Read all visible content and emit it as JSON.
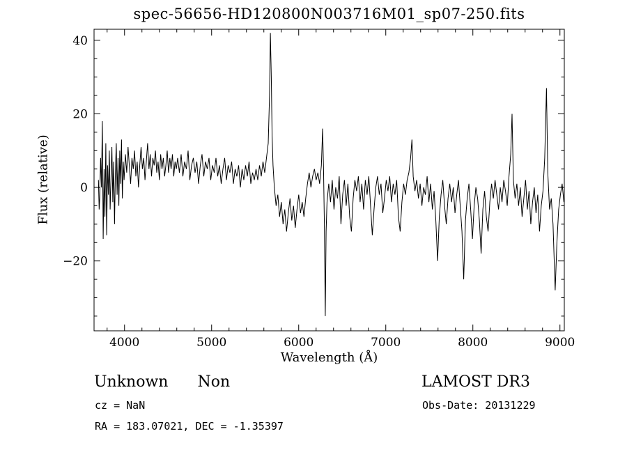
{
  "title": "spec-56656-HD120800N003716M01_sp07-250.fits",
  "axes": {
    "xlabel": "Wavelength (Å)",
    "ylabel": "Flux (relative)"
  },
  "annotations": {
    "class_name": "Unknown",
    "subclass": "Non",
    "survey": "LAMOST DR3",
    "cz": "cz = NaN",
    "obs_date": "Obs-Date: 20131229",
    "ra_dec": "RA = 183.07021, DEC =  -1.35397"
  },
  "colors": {
    "line": "#000000",
    "frame": "#000000",
    "background": "#ffffff"
  },
  "chart_data": {
    "type": "line",
    "title": "spec-56656-HD120800N003716M01_sp07-250.fits",
    "xlabel": "Wavelength (Å)",
    "ylabel": "Flux (relative)",
    "xlim": [
      3650,
      9050
    ],
    "ylim": [
      -39,
      43
    ],
    "x_ticks": [
      4000,
      5000,
      6000,
      7000,
      8000,
      9000
    ],
    "y_ticks": [
      -20,
      0,
      20,
      40
    ],
    "x_minor_step": 200,
    "y_minor_step": 5,
    "grid": false,
    "legend": "none",
    "points": [
      [
        3700,
        2
      ],
      [
        3708,
        -6
      ],
      [
        3715,
        -3
      ],
      [
        3725,
        8
      ],
      [
        3735,
        0
      ],
      [
        3745,
        18
      ],
      [
        3755,
        -14
      ],
      [
        3765,
        5
      ],
      [
        3775,
        -8
      ],
      [
        3785,
        12
      ],
      [
        3795,
        -13
      ],
      [
        3805,
        6
      ],
      [
        3815,
        -2
      ],
      [
        3825,
        10
      ],
      [
        3835,
        -6
      ],
      [
        3845,
        3
      ],
      [
        3855,
        11
      ],
      [
        3865,
        -4
      ],
      [
        3875,
        7
      ],
      [
        3885,
        -10
      ],
      [
        3895,
        4
      ],
      [
        3905,
        12
      ],
      [
        3915,
        -2
      ],
      [
        3925,
        8
      ],
      [
        3935,
        -5
      ],
      [
        3945,
        10
      ],
      [
        3955,
        1
      ],
      [
        3965,
        13
      ],
      [
        3975,
        -3
      ],
      [
        3985,
        7
      ],
      [
        3995,
        2
      ],
      [
        4010,
        9
      ],
      [
        4025,
        4
      ],
      [
        4040,
        11
      ],
      [
        4055,
        6
      ],
      [
        4070,
        1
      ],
      [
        4085,
        8
      ],
      [
        4100,
        5
      ],
      [
        4115,
        10
      ],
      [
        4130,
        3
      ],
      [
        4145,
        7
      ],
      [
        4160,
        0
      ],
      [
        4175,
        6
      ],
      [
        4190,
        11
      ],
      [
        4205,
        5
      ],
      [
        4220,
        8
      ],
      [
        4235,
        2
      ],
      [
        4250,
        7
      ],
      [
        4265,
        12
      ],
      [
        4280,
        5
      ],
      [
        4295,
        9
      ],
      [
        4310,
        3
      ],
      [
        4325,
        8
      ],
      [
        4340,
        6
      ],
      [
        4355,
        10
      ],
      [
        4370,
        4
      ],
      [
        4385,
        7
      ],
      [
        4400,
        2
      ],
      [
        4415,
        9
      ],
      [
        4430,
        5
      ],
      [
        4445,
        8
      ],
      [
        4460,
        3
      ],
      [
        4475,
        6
      ],
      [
        4490,
        10
      ],
      [
        4505,
        4
      ],
      [
        4520,
        8
      ],
      [
        4535,
        5
      ],
      [
        4550,
        9
      ],
      [
        4565,
        3
      ],
      [
        4580,
        7
      ],
      [
        4595,
        5
      ],
      [
        4610,
        8
      ],
      [
        4630,
        4
      ],
      [
        4650,
        9
      ],
      [
        4670,
        3
      ],
      [
        4690,
        7
      ],
      [
        4710,
        5
      ],
      [
        4730,
        10
      ],
      [
        4750,
        2
      ],
      [
        4770,
        6
      ],
      [
        4790,
        8
      ],
      [
        4810,
        4
      ],
      [
        4830,
        7
      ],
      [
        4850,
        1
      ],
      [
        4870,
        6
      ],
      [
        4890,
        9
      ],
      [
        4910,
        3
      ],
      [
        4930,
        7
      ],
      [
        4950,
        5
      ],
      [
        4970,
        8
      ],
      [
        4990,
        2
      ],
      [
        5010,
        6
      ],
      [
        5030,
        4
      ],
      [
        5050,
        8
      ],
      [
        5070,
        3
      ],
      [
        5090,
        6
      ],
      [
        5110,
        1
      ],
      [
        5130,
        5
      ],
      [
        5150,
        8
      ],
      [
        5170,
        2
      ],
      [
        5190,
        6
      ],
      [
        5210,
        4
      ],
      [
        5230,
        7
      ],
      [
        5250,
        1
      ],
      [
        5270,
        5
      ],
      [
        5290,
        3
      ],
      [
        5310,
        6
      ],
      [
        5330,
        0
      ],
      [
        5350,
        5
      ],
      [
        5370,
        2
      ],
      [
        5390,
        6
      ],
      [
        5410,
        3
      ],
      [
        5430,
        7
      ],
      [
        5450,
        1
      ],
      [
        5470,
        4
      ],
      [
        5490,
        2
      ],
      [
        5510,
        5
      ],
      [
        5530,
        2
      ],
      [
        5550,
        6
      ],
      [
        5570,
        3
      ],
      [
        5590,
        7
      ],
      [
        5610,
        4
      ],
      [
        5630,
        8
      ],
      [
        5650,
        12
      ],
      [
        5665,
        25
      ],
      [
        5675,
        42
      ],
      [
        5685,
        30
      ],
      [
        5695,
        14
      ],
      [
        5705,
        6
      ],
      [
        5720,
        0
      ],
      [
        5740,
        -5
      ],
      [
        5760,
        -2
      ],
      [
        5780,
        -8
      ],
      [
        5800,
        -4
      ],
      [
        5820,
        -10
      ],
      [
        5840,
        -6
      ],
      [
        5860,
        -12
      ],
      [
        5880,
        -7
      ],
      [
        5900,
        -3
      ],
      [
        5920,
        -9
      ],
      [
        5940,
        -5
      ],
      [
        5960,
        -11
      ],
      [
        5980,
        -6
      ],
      [
        6000,
        -2
      ],
      [
        6020,
        -7
      ],
      [
        6040,
        -4
      ],
      [
        6060,
        -8
      ],
      [
        6080,
        -3
      ],
      [
        6100,
        1
      ],
      [
        6120,
        4
      ],
      [
        6140,
        0
      ],
      [
        6160,
        3
      ],
      [
        6180,
        5
      ],
      [
        6200,
        2
      ],
      [
        6220,
        4
      ],
      [
        6240,
        1
      ],
      [
        6260,
        6
      ],
      [
        6275,
        16
      ],
      [
        6285,
        5
      ],
      [
        6295,
        -10
      ],
      [
        6305,
        -35
      ],
      [
        6315,
        -12
      ],
      [
        6325,
        -4
      ],
      [
        6345,
        1
      ],
      [
        6365,
        -4
      ],
      [
        6385,
        2
      ],
      [
        6405,
        -6
      ],
      [
        6425,
        0
      ],
      [
        6445,
        -3
      ],
      [
        6465,
        3
      ],
      [
        6485,
        -10
      ],
      [
        6505,
        -2
      ],
      [
        6525,
        2
      ],
      [
        6545,
        -5
      ],
      [
        6565,
        1
      ],
      [
        6585,
        -8
      ],
      [
        6605,
        -12
      ],
      [
        6625,
        -3
      ],
      [
        6645,
        2
      ],
      [
        6665,
        -1
      ],
      [
        6685,
        3
      ],
      [
        6705,
        -4
      ],
      [
        6725,
        1
      ],
      [
        6745,
        -6
      ],
      [
        6765,
        2
      ],
      [
        6785,
        -2
      ],
      [
        6805,
        3
      ],
      [
        6825,
        -5
      ],
      [
        6845,
        -13
      ],
      [
        6865,
        -6
      ],
      [
        6885,
        0
      ],
      [
        6905,
        3
      ],
      [
        6925,
        -2
      ],
      [
        6945,
        1
      ],
      [
        6965,
        -7
      ],
      [
        6985,
        -3
      ],
      [
        7005,
        2
      ],
      [
        7025,
        -1
      ],
      [
        7045,
        3
      ],
      [
        7065,
        -4
      ],
      [
        7085,
        1
      ],
      [
        7105,
        -2
      ],
      [
        7125,
        2
      ],
      [
        7145,
        -8
      ],
      [
        7165,
        -12
      ],
      [
        7185,
        -4
      ],
      [
        7205,
        1
      ],
      [
        7225,
        -2
      ],
      [
        7245,
        2
      ],
      [
        7265,
        4
      ],
      [
        7285,
        8
      ],
      [
        7300,
        13
      ],
      [
        7315,
        3
      ],
      [
        7335,
        -1
      ],
      [
        7355,
        2
      ],
      [
        7375,
        -3
      ],
      [
        7395,
        1
      ],
      [
        7415,
        -5
      ],
      [
        7435,
        0
      ],
      [
        7455,
        -2
      ],
      [
        7475,
        3
      ],
      [
        7495,
        -4
      ],
      [
        7515,
        1
      ],
      [
        7535,
        -6
      ],
      [
        7555,
        -1
      ],
      [
        7575,
        -9
      ],
      [
        7595,
        -20
      ],
      [
        7615,
        -8
      ],
      [
        7635,
        -2
      ],
      [
        7655,
        2
      ],
      [
        7675,
        -5
      ],
      [
        7695,
        -10
      ],
      [
        7715,
        -3
      ],
      [
        7735,
        1
      ],
      [
        7755,
        -4
      ],
      [
        7775,
        0
      ],
      [
        7795,
        -7
      ],
      [
        7815,
        -2
      ],
      [
        7835,
        2
      ],
      [
        7855,
        -5
      ],
      [
        7875,
        -12
      ],
      [
        7895,
        -25
      ],
      [
        7915,
        -9
      ],
      [
        7935,
        -3
      ],
      [
        7955,
        1
      ],
      [
        7975,
        -6
      ],
      [
        7995,
        -14
      ],
      [
        8015,
        -5
      ],
      [
        8035,
        0
      ],
      [
        8055,
        -3
      ],
      [
        8075,
        -9
      ],
      [
        8095,
        -18
      ],
      [
        8115,
        -6
      ],
      [
        8135,
        -1
      ],
      [
        8155,
        -8
      ],
      [
        8175,
        -12
      ],
      [
        8195,
        -4
      ],
      [
        8215,
        1
      ],
      [
        8235,
        -3
      ],
      [
        8255,
        2
      ],
      [
        8275,
        -2
      ],
      [
        8295,
        -6
      ],
      [
        8315,
        0
      ],
      [
        8335,
        -4
      ],
      [
        8355,
        2
      ],
      [
        8375,
        -1
      ],
      [
        8395,
        -5
      ],
      [
        8415,
        3
      ],
      [
        8435,
        9
      ],
      [
        8450,
        20
      ],
      [
        8465,
        2
      ],
      [
        8485,
        -3
      ],
      [
        8505,
        1
      ],
      [
        8525,
        -5
      ],
      [
        8545,
        0
      ],
      [
        8565,
        -8
      ],
      [
        8585,
        -3
      ],
      [
        8605,
        2
      ],
      [
        8625,
        -6
      ],
      [
        8645,
        -1
      ],
      [
        8665,
        -10
      ],
      [
        8685,
        -4
      ],
      [
        8705,
        0
      ],
      [
        8725,
        -7
      ],
      [
        8745,
        -2
      ],
      [
        8765,
        -12
      ],
      [
        8785,
        -5
      ],
      [
        8805,
        -1
      ],
      [
        8825,
        8
      ],
      [
        8845,
        27
      ],
      [
        8860,
        4
      ],
      [
        8880,
        -6
      ],
      [
        8900,
        -3
      ],
      [
        8920,
        -10
      ],
      [
        8945,
        -28
      ],
      [
        8965,
        -15
      ],
      [
        8985,
        -6
      ],
      [
        9005,
        -2
      ],
      [
        9025,
        1
      ],
      [
        9045,
        -4
      ]
    ]
  }
}
